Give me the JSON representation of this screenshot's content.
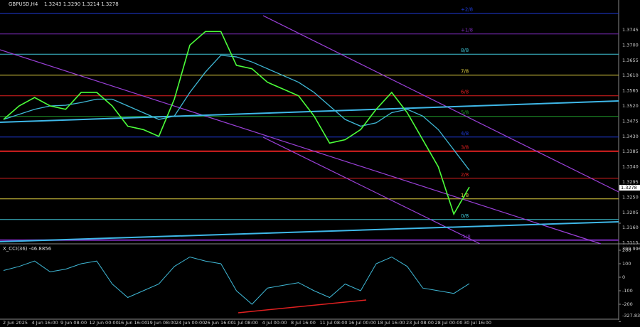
{
  "header": {
    "symbol": "GBPUSD,H4",
    "ohlc": "1.3243 1.3290 1.3214 1.3278"
  },
  "price_axis": [
    "1.3745",
    "1.3700",
    "1.3655",
    "1.3610",
    "1.3565",
    "1.3520",
    "1.3475",
    "1.3430",
    "1.3385",
    "1.3340",
    "1.3295",
    "1.3250",
    "1.3205",
    "1.3160",
    "1.3115"
  ],
  "levels": [
    {
      "price": 1.3794,
      "label": "+2/8",
      "color": "#1f3bd6"
    },
    {
      "price": 1.3733,
      "label": "+1/8",
      "color": "#7a2bb8"
    },
    {
      "price": 1.3673,
      "label": "8/8",
      "color": "#3fc4d6"
    },
    {
      "price": 1.3611,
      "label": "7/8",
      "color": "#e0d040"
    },
    {
      "price": 1.355,
      "label": "6/8",
      "color": "#e02020"
    },
    {
      "price": 1.3489,
      "label": "5/8",
      "color": "#1f9a2a"
    },
    {
      "price": 1.3428,
      "label": "4/8",
      "color": "#1f3bd6"
    },
    {
      "price": 1.3386,
      "label": "3/8",
      "color": "#e02020"
    },
    {
      "price": 1.3306,
      "label": "2/8",
      "color": "#e02020"
    },
    {
      "price": 1.3245,
      "label": "1/8",
      "color": "#e0d040"
    },
    {
      "price": 1.3184,
      "label": "0/8",
      "color": "#3fc4d6"
    },
    {
      "price": 1.3123,
      "label": "-1/8",
      "color": "#7a2bb8"
    }
  ],
  "current_price": "1.3278",
  "close": [
    1.348,
    1.352,
    1.3545,
    1.352,
    1.351,
    1.356,
    1.356,
    1.352,
    1.346,
    1.345,
    1.343,
    1.354,
    1.37,
    1.374,
    1.374,
    1.364,
    1.363,
    1.359,
    1.357,
    1.355,
    1.349,
    1.341,
    1.342,
    1.345,
    1.351,
    1.356,
    1.35,
    1.342,
    1.334,
    1.32,
    1.328
  ],
  "ma": [
    1.348,
    1.3495,
    1.351,
    1.352,
    1.3522,
    1.353,
    1.354,
    1.354,
    1.352,
    1.35,
    1.348,
    1.349,
    1.356,
    1.362,
    1.367,
    1.3665,
    1.365,
    1.363,
    1.361,
    1.359,
    1.356,
    1.352,
    1.348,
    1.346,
    1.347,
    1.35,
    1.351,
    1.349,
    1.345,
    1.339,
    1.333
  ],
  "cci": {
    "title": "X_CCI(36) -46.8856",
    "axis": [
      {
        "value": 399.9969,
        "label": "399.9969"
      },
      200,
      100,
      0,
      -100,
      -200,
      {
        "value": -327.832,
        "label": "-327.8320"
      }
    ],
    "values": [
      50,
      80,
      120,
      40,
      60,
      100,
      120,
      -50,
      -150,
      -100,
      -50,
      80,
      150,
      120,
      100,
      -100,
      -200,
      -80,
      -60,
      -40,
      -100,
      -150,
      -50,
      -100,
      100,
      150,
      80,
      -80,
      -100,
      -120,
      -47
    ]
  },
  "time_axis": [
    "2 Jun 2025",
    "4 Jun 16:00",
    "9 Jun 08:00",
    "12 Jun 00:00",
    "16 Jun 16:00",
    "19 Jun 08:00",
    "24 Jun 00:00",
    "26 Jun 16:00",
    "1 Jul 08:00",
    "4 Jul 00:00",
    "8 Jul 16:00",
    "11 Jul 08:00",
    "16 Jul 00:00",
    "18 Jul 16:00",
    "23 Jul 08:00",
    "28 Jul 00:00",
    "30 Jul 16:00"
  ]
}
